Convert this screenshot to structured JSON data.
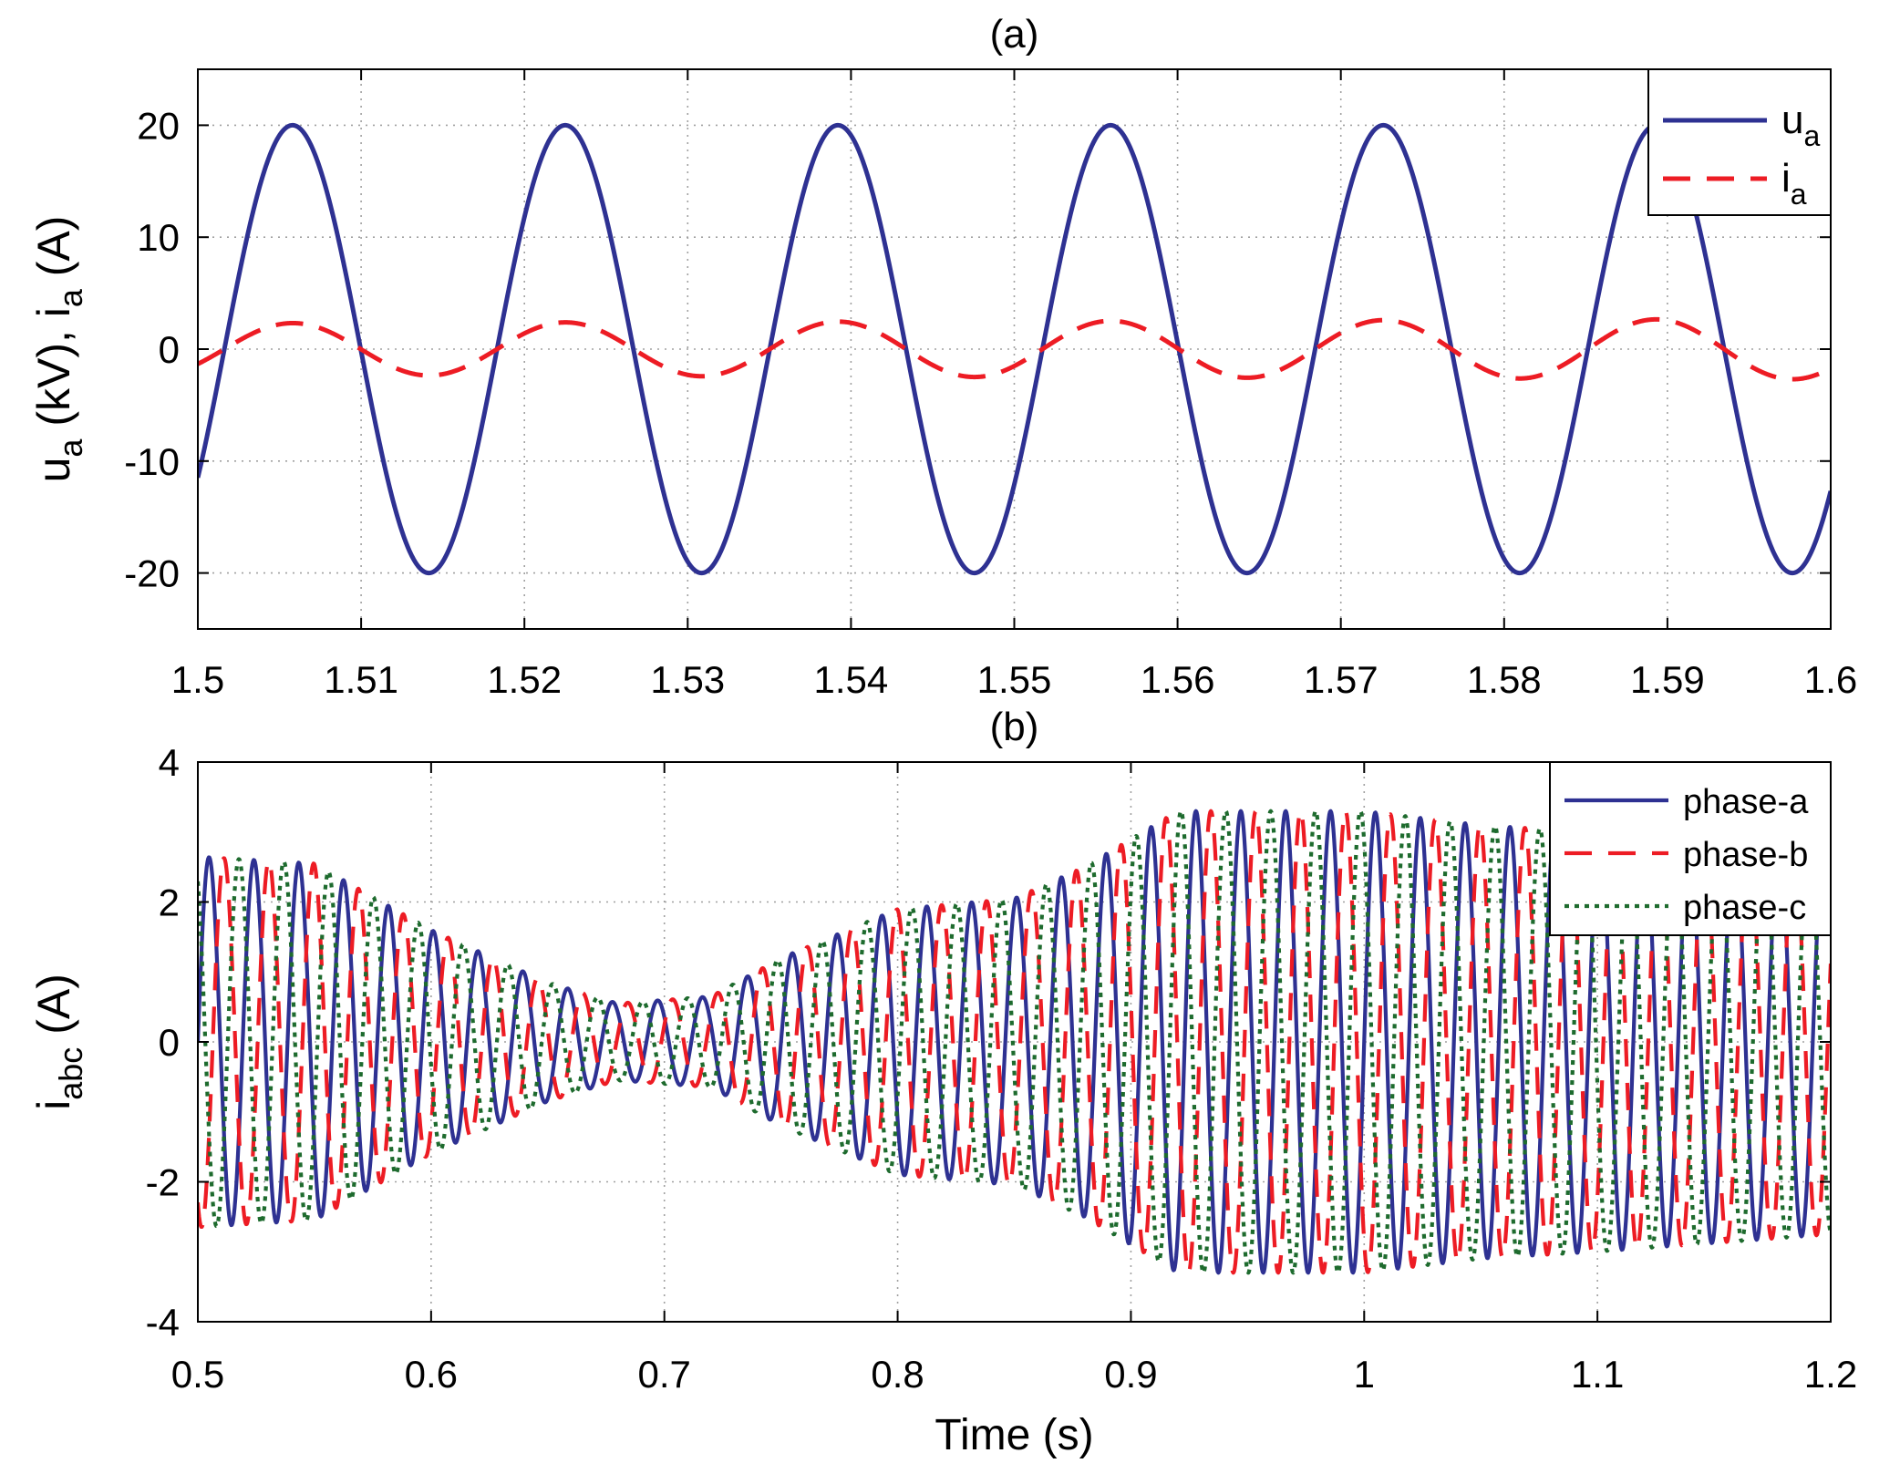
{
  "chart_data": [
    {
      "type": "line",
      "title": "(a)",
      "xlabel": "",
      "ylabel": {
        "u": "u",
        "u_sub": "a",
        "u_unit": " (kV), ",
        "i": "i",
        "i_sub": "a",
        "i_unit": " (A)"
      },
      "xlim": [
        1.5,
        1.6
      ],
      "ylim": [
        -25,
        25
      ],
      "xticks": [
        1.5,
        1.51,
        1.52,
        1.53,
        1.54,
        1.55,
        1.56,
        1.57,
        1.58,
        1.59,
        1.6
      ],
      "xtick_labels": [
        "1.5",
        "1.51",
        "1.52",
        "1.53",
        "1.54",
        "1.55",
        "1.56",
        "1.57",
        "1.58",
        "1.59",
        "1.6"
      ],
      "yticks": [
        -20,
        -10,
        0,
        10,
        20
      ],
      "ytick_labels": [
        "-20",
        "-10",
        "0",
        "10",
        "20"
      ],
      "grid": true,
      "legend_position": "top-right",
      "series": [
        {
          "name": "u",
          "name_sub": "a",
          "color": "#2e3192",
          "dash": "solid",
          "amplitude": 20,
          "period": 0.0167,
          "first_peak": 1.5058,
          "amp_growth": 0
        },
        {
          "name": "i",
          "name_sub": "a",
          "color": "#ed1c24",
          "dash": "dashed",
          "amplitude": 2.3,
          "period": 0.0167,
          "first_peak": 1.5058,
          "amp_growth": 0.4
        }
      ]
    },
    {
      "type": "line",
      "title": "(b)",
      "xlabel": "Time (s)",
      "ylabel": {
        "i": "i",
        "i_sub": "abc",
        "i_unit": " (A)"
      },
      "xlim": [
        0.5,
        1.2
      ],
      "ylim": [
        -4,
        4
      ],
      "xticks": [
        0.5,
        0.6,
        0.7,
        0.8,
        0.9,
        1.0,
        1.1,
        1.2
      ],
      "xtick_labels": [
        "0.5",
        "0.6",
        "0.7",
        "0.8",
        "0.9",
        "1",
        "1.1",
        "1.2"
      ],
      "yticks": [
        -4,
        -2,
        0,
        2,
        4
      ],
      "ytick_labels": [
        "-4",
        "-2",
        "0",
        "2",
        "4"
      ],
      "grid": true,
      "legend_position": "top-right",
      "frequency_hz": 52,
      "envelope": {
        "t": [
          0.5,
          0.55,
          0.6,
          0.65,
          0.68,
          0.72,
          0.75,
          0.8,
          0.85,
          0.88,
          0.92,
          1.0,
          1.05,
          1.1,
          1.2
        ],
        "amp": [
          2.65,
          2.55,
          1.6,
          0.85,
          0.55,
          0.65,
          1.2,
          1.9,
          2.05,
          2.5,
          3.3,
          3.3,
          3.1,
          3.0,
          2.75
        ]
      },
      "series": [
        {
          "name": "phase-a",
          "color": "#2e3192",
          "dash": "solid",
          "phase_deg": 0
        },
        {
          "name": "phase-b",
          "color": "#ed1c24",
          "dash": "dashed",
          "phase_deg": -120
        },
        {
          "name": "phase-c",
          "color": "#1e6b2e",
          "dash": "dotted",
          "phase_deg": 120
        }
      ]
    }
  ]
}
